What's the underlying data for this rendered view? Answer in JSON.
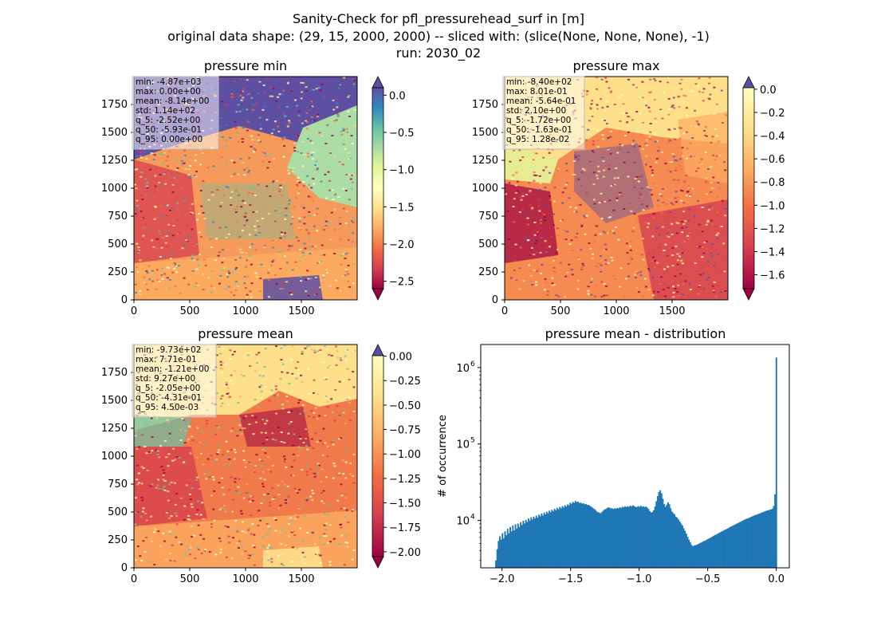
{
  "suptitle": [
    "Sanity-Check for pfl_pressurehead_surf in [m]",
    "original data shape: (29, 15, 2000, 2000) -- sliced with: (slice(None, None, None), -1)",
    "run: 2030_02"
  ],
  "chart_data": [
    {
      "type": "heatmap",
      "title": "pressure min",
      "colormap": "Spectral",
      "xticks": [
        "0",
        "500",
        "1000",
        "1500"
      ],
      "yticks": [
        "0",
        "250",
        "500",
        "750",
        "1000",
        "1250",
        "1500",
        "1750"
      ],
      "xlim": [
        0,
        2000
      ],
      "ylim": [
        0,
        2000
      ],
      "colorbar": {
        "ticks": [
          "0.0",
          "−0.5",
          "−1.0",
          "−1.5",
          "−2.0",
          "−2.5"
        ],
        "range": [
          -2.6,
          0.1
        ],
        "extend": "both",
        "upper_extend_color": "#5e4fa2"
      },
      "stats": [
        "min: -4.87e+03",
        "max: 0.00e+00",
        "mean: -8.14e+00",
        "std: 1.14e+02",
        "q_5: -2.52e+00",
        "q_50: -5.93e-01",
        "q_95: 0.00e+00"
      ]
    },
    {
      "type": "heatmap",
      "title": "pressure max",
      "colormap": "Spectral",
      "xticks": [
        "0",
        "500",
        "1000",
        "1500"
      ],
      "yticks": [
        "0",
        "250",
        "500",
        "750",
        "1000",
        "1250",
        "1500",
        "1750"
      ],
      "xlim": [
        0,
        2000
      ],
      "ylim": [
        0,
        2000
      ],
      "colorbar": {
        "ticks": [
          "0.0",
          "−0.2",
          "−0.4",
          "−0.6",
          "−0.8",
          "−1.0",
          "−1.2",
          "−1.4",
          "−1.6"
        ],
        "range": [
          -1.72,
          0.013
        ],
        "extend": "both",
        "upper_extend_color": "#5e4fa2"
      },
      "stats": [
        "min: -8.40e+02",
        "max: 8.01e-01",
        "mean: -5.64e-01",
        "std: 2.10e+00",
        "q_5: -1.72e+00",
        "q_50: -1.63e-01",
        "q_95: 1.28e-02"
      ]
    },
    {
      "type": "heatmap",
      "title": "pressure mean",
      "colormap": "Spectral",
      "xticks": [
        "0",
        "500",
        "1000",
        "1500"
      ],
      "yticks": [
        "0",
        "250",
        "500",
        "750",
        "1000",
        "1250",
        "1500",
        "1750"
      ],
      "xlim": [
        0,
        2000
      ],
      "ylim": [
        0,
        2000
      ],
      "colorbar": {
        "ticks": [
          "0.00",
          "−0.25",
          "−0.50",
          "−0.75",
          "−1.00",
          "−1.25",
          "−1.50",
          "−1.75",
          "−2.00"
        ],
        "range": [
          -2.05,
          0.0045
        ],
        "extend": "both",
        "upper_extend_color": "#5e4fa2"
      },
      "stats": [
        "min: -9.73e+02",
        "max: 7.71e-01",
        "mean: -1.21e+00",
        "std: 9.27e+00",
        "q_5: -2.05e+00",
        "q_50: -4.31e-01",
        "q_95: 4.50e-03"
      ]
    },
    {
      "type": "bar",
      "title": "pressure mean - distribution",
      "ylabel": "# of occurrence",
      "xlabel": "",
      "yscale": "log",
      "xlim": [
        -2.155,
        0.095
      ],
      "ylim": [
        2400,
        2000000
      ],
      "xticks": [
        -2.0,
        -1.5,
        -1.0,
        -0.5,
        0.0
      ],
      "xtick_labels": [
        "−2.0",
        "−1.5",
        "−1.0",
        "−0.5",
        "0.0"
      ],
      "yticks": [
        10000,
        100000,
        1000000
      ],
      "ytick_base": "10",
      "ytick_exponents": [
        "4",
        "5",
        "6"
      ],
      "bar_color": "#1f77b4",
      "bin_start": -2.05,
      "bin_end": 0.0045,
      "values": [
        3000,
        4200,
        5400,
        6200,
        5600,
        6800,
        5800,
        7200,
        6400,
        7800,
        6800,
        8200,
        7200,
        8600,
        7400,
        8900,
        7800,
        9100,
        8200,
        9500,
        8700,
        9900,
        9100,
        10200,
        9500,
        10600,
        9900,
        11000,
        10300,
        11200,
        10600,
        11600,
        10900,
        11900,
        11300,
        12300,
        11600,
        12700,
        12000,
        13000,
        12400,
        13400,
        12800,
        13800,
        13200,
        14200,
        13600,
        14600,
        14000,
        15000,
        14400,
        15400,
        14800,
        15800,
        15200,
        16200,
        15800,
        17000,
        16500,
        17500,
        17000,
        18000,
        17300,
        17600,
        16900,
        17100,
        16600,
        16800,
        16200,
        16400,
        15900,
        16000,
        15500,
        15200,
        14700,
        14300,
        13900,
        13300,
        12900,
        12700,
        12400,
        12800,
        13300,
        13800,
        14100,
        14400,
        14800,
        14700,
        14300,
        14500,
        14100,
        14400,
        14200,
        14600,
        14300,
        14900,
        14500,
        15100,
        14800,
        15300,
        14900,
        15400,
        15000,
        15600,
        15200,
        15800,
        15400,
        15100,
        14900,
        15400,
        15000,
        15600,
        15100,
        15300,
        14900,
        15200,
        14700,
        14100,
        13200,
        12700,
        12900,
        13600,
        15200,
        17800,
        20800,
        23500,
        24800,
        22700,
        19200,
        16300,
        15100,
        16100,
        17200,
        16300,
        14400,
        13100,
        12500,
        12000,
        11200,
        10900,
        10300,
        9700,
        9100,
        8600,
        7900,
        7300,
        6700,
        6100,
        5600,
        5200,
        4800,
        4600,
        4700,
        4750,
        4800,
        4900,
        5000,
        5100,
        5200,
        5350,
        5400,
        5500,
        5650,
        5750,
        5900,
        6000,
        6150,
        6300,
        6450,
        6550,
        6700,
        6850,
        7000,
        7150,
        7300,
        7450,
        7600,
        7750,
        7900,
        8100,
        8300,
        8400,
        8600,
        8800,
        8950,
        9150,
        9300,
        9500,
        9700,
        9900,
        10100,
        10300,
        10500,
        10600,
        10800,
        11000,
        11200,
        11400,
        11600,
        11800,
        11900,
        12100,
        12300,
        12500,
        12700,
        12900,
        13100,
        13300,
        13500,
        13600,
        13800,
        14000,
        14200,
        15500,
        22000,
        1350000
      ]
    }
  ]
}
